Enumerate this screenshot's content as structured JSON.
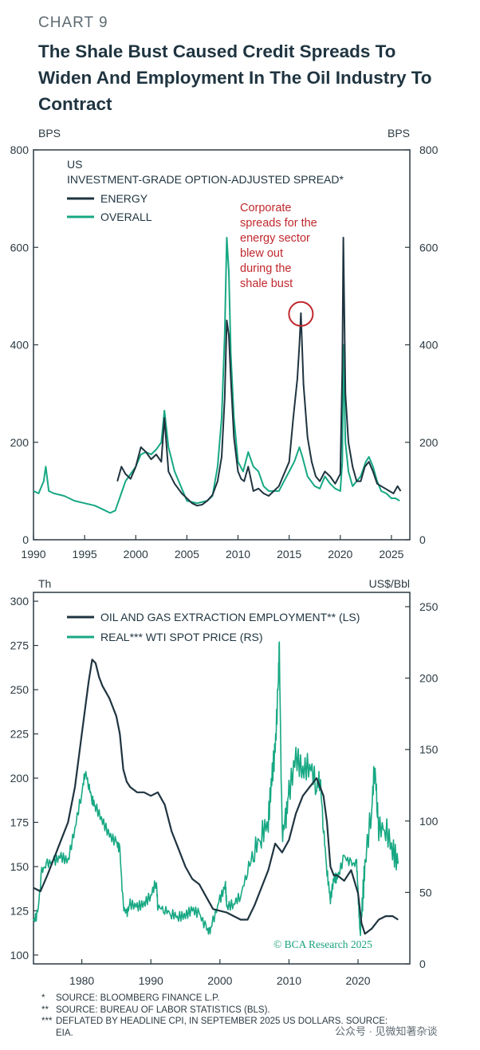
{
  "header": {
    "chart_label": "CHART 9",
    "title": "The Shale Bust Caused Credit Spreads To Widen And Employment In The Oil Industry To Contract"
  },
  "colors": {
    "dark_series": "#1f3440",
    "green_series": "#17a883",
    "annotation": "#c0282d",
    "axis": "#2b3a42"
  },
  "chart_data": [
    {
      "type": "line",
      "title": "US INVESTMENT-GRADE OPTION-ADJUSTED SPREAD*",
      "title_line1": "US",
      "title_line2": "INVESTMENT-GRADE OPTION-ADJUSTED SPREAD*",
      "ylabel_left": "BPS",
      "ylabel_right": "BPS",
      "xlim": [
        1990,
        2026.8
      ],
      "ylim": [
        0,
        800
      ],
      "x_ticks": [
        1990,
        1995,
        2000,
        2005,
        2010,
        2015,
        2020,
        2025
      ],
      "y_ticks": [
        0,
        200,
        400,
        600,
        800
      ],
      "series": [
        {
          "name": "ENERGY",
          "x": [
            1998.2,
            1998.6,
            1999.0,
            1999.5,
            2000.0,
            2000.5,
            2001.0,
            2001.5,
            2002.0,
            2002.5,
            2002.8,
            2003.2,
            2003.8,
            2004.5,
            2005.0,
            2005.5,
            2006.0,
            2006.5,
            2007.0,
            2007.5,
            2008.0,
            2008.4,
            2008.7,
            2008.9,
            2009.1,
            2009.3,
            2009.6,
            2010.0,
            2010.3,
            2010.6,
            2011.0,
            2011.5,
            2012.0,
            2012.5,
            2013.0,
            2013.5,
            2014.0,
            2014.5,
            2015.0,
            2015.4,
            2015.8,
            2016.0,
            2016.15,
            2016.4,
            2016.8,
            2017.2,
            2017.6,
            2018.0,
            2018.5,
            2019.0,
            2019.5,
            2020.0,
            2020.2,
            2020.3,
            2020.5,
            2020.8,
            2021.2,
            2021.6,
            2022.0,
            2022.4,
            2022.8,
            2023.2,
            2023.6,
            2024.0,
            2024.4,
            2024.8,
            2025.2,
            2025.6,
            2025.9
          ],
          "values": [
            120,
            150,
            135,
            125,
            150,
            190,
            180,
            165,
            175,
            160,
            250,
            140,
            115,
            95,
            85,
            75,
            70,
            72,
            80,
            92,
            120,
            170,
            290,
            450,
            420,
            330,
            210,
            140,
            125,
            120,
            150,
            100,
            105,
            95,
            90,
            100,
            110,
            135,
            160,
            250,
            330,
            400,
            465,
            320,
            210,
            160,
            130,
            120,
            140,
            130,
            115,
            135,
            350,
            620,
            300,
            200,
            150,
            120,
            120,
            150,
            160,
            140,
            115,
            110,
            105,
            100,
            95,
            110,
            100
          ]
        },
        {
          "name": "OVERALL",
          "x": [
            1990.0,
            1990.5,
            1991.0,
            1991.2,
            1991.5,
            1992.0,
            1993.0,
            1994.0,
            1995.0,
            1996.0,
            1997.0,
            1997.5,
            1998.0,
            1998.5,
            1999.0,
            1999.5,
            2000.0,
            2000.5,
            2001.0,
            2001.5,
            2002.0,
            2002.5,
            2002.8,
            2003.2,
            2003.8,
            2004.5,
            2005.0,
            2006.0,
            2007.0,
            2007.5,
            2008.0,
            2008.4,
            2008.7,
            2008.9,
            2009.1,
            2009.3,
            2009.6,
            2010.0,
            2010.5,
            2011.0,
            2011.5,
            2012.0,
            2012.5,
            2013.0,
            2014.0,
            2014.5,
            2015.0,
            2015.5,
            2016.0,
            2016.3,
            2016.8,
            2017.5,
            2018.0,
            2018.5,
            2019.0,
            2019.5,
            2020.0,
            2020.2,
            2020.3,
            2020.5,
            2020.8,
            2021.2,
            2022.0,
            2022.5,
            2022.8,
            2023.2,
            2023.6,
            2024.0,
            2024.5,
            2025.0,
            2025.4,
            2025.8
          ],
          "values": [
            100,
            95,
            120,
            150,
            100,
            95,
            90,
            80,
            75,
            70,
            60,
            55,
            60,
            90,
            120,
            135,
            150,
            175,
            180,
            175,
            185,
            200,
            265,
            190,
            140,
            105,
            80,
            75,
            80,
            90,
            150,
            250,
            420,
            620,
            550,
            380,
            250,
            160,
            140,
            180,
            150,
            140,
            110,
            100,
            100,
            120,
            140,
            160,
            190,
            170,
            130,
            110,
            105,
            130,
            115,
            105,
            100,
            160,
            400,
            200,
            140,
            110,
            130,
            160,
            170,
            150,
            120,
            100,
            95,
            85,
            85,
            80
          ]
        }
      ],
      "annotation": {
        "text_lines": [
          "Corporate",
          "spreads for the",
          "energy sector",
          "blew out",
          "during the",
          "shale bust"
        ],
        "target": [
          2016.15,
          465
        ]
      }
    },
    {
      "type": "line",
      "ylabel_left": "Th",
      "ylabel_right": "US$/Bbl",
      "xlim": [
        1973,
        2027.5
      ],
      "ylim_left": [
        95,
        305
      ],
      "ylim_right": [
        0,
        260
      ],
      "x_ticks": [
        1980,
        1990,
        2000,
        2010,
        2020
      ],
      "y_ticks_left": [
        100,
        125,
        150,
        175,
        200,
        225,
        250,
        275,
        300
      ],
      "y_ticks_right": [
        0,
        50,
        100,
        150,
        200,
        250
      ],
      "series": [
        {
          "name": "OIL AND GAS EXTRACTION EMPLOYMENT** (LS)",
          "axis": "left",
          "x": [
            1973,
            1974,
            1975,
            1976,
            1977,
            1978,
            1979,
            1980,
            1981,
            1981.5,
            1982,
            1982.5,
            1983,
            1984,
            1985,
            1985.5,
            1986,
            1986.5,
            1987,
            1988,
            1989,
            1990,
            1991,
            1992,
            1993,
            1994,
            1995,
            1996,
            1997,
            1998,
            1999,
            2000,
            2001,
            2002,
            2003,
            2004,
            2005,
            2006,
            2007,
            2008,
            2009,
            2010,
            2011,
            2012,
            2013,
            2014,
            2015,
            2015.5,
            2016,
            2016.5,
            2017,
            2018,
            2019,
            2020,
            2020.5,
            2021,
            2022,
            2023,
            2024,
            2025,
            2025.8
          ],
          "values": [
            138,
            136,
            145,
            155,
            165,
            175,
            195,
            225,
            255,
            267,
            265,
            257,
            252,
            245,
            235,
            225,
            205,
            198,
            195,
            192,
            192,
            190,
            192,
            185,
            170,
            160,
            150,
            143,
            140,
            133,
            126,
            125,
            124,
            122,
            120,
            120,
            128,
            138,
            148,
            163,
            158,
            165,
            180,
            190,
            195,
            200,
            190,
            175,
            150,
            145,
            145,
            142,
            148,
            135,
            118,
            112,
            115,
            120,
            122,
            122,
            120
          ]
        },
        {
          "name": "REAL*** WTI SPOT PRICE (RS)",
          "axis": "right",
          "x": [
            1973.0,
            1973.6,
            1974.2,
            1975,
            1976,
            1977,
            1978,
            1979,
            1980,
            1980.5,
            1981,
            1981.5,
            1982,
            1983,
            1984,
            1985,
            1985.5,
            1986,
            1986.5,
            1987,
            1988,
            1989,
            1990,
            1990.8,
            1991,
            1992,
            1993,
            1994,
            1995,
            1996,
            1997,
            1998,
            1998.5,
            1999,
            2000,
            2000.8,
            2001,
            2002,
            2003,
            2004,
            2005,
            2006,
            2007,
            2007.5,
            2008,
            2008.4,
            2008.6,
            2009,
            2009.5,
            2010,
            2011,
            2012,
            2013,
            2014,
            2014.5,
            2015,
            2015.5,
            2016,
            2016.5,
            2017,
            2018,
            2019,
            2019.8,
            2020,
            2020.3,
            2020.6,
            2021,
            2022,
            2022.4,
            2022.8,
            2023,
            2024,
            2025,
            2025.8
          ],
          "values": [
            30,
            35,
            65,
            70,
            72,
            75,
            72,
            95,
            120,
            135,
            125,
            115,
            110,
            100,
            90,
            85,
            80,
            40,
            35,
            42,
            40,
            42,
            48,
            58,
            40,
            38,
            35,
            33,
            34,
            38,
            35,
            25,
            22,
            30,
            45,
            55,
            40,
            42,
            48,
            65,
            80,
            90,
            100,
            130,
            150,
            190,
            220,
            90,
            100,
            120,
            145,
            135,
            140,
            125,
            130,
            95,
            65,
            45,
            60,
            60,
            75,
            70,
            70,
            50,
            20,
            40,
            70,
            110,
            140,
            110,
            95,
            95,
            80,
            70
          ]
        }
      ],
      "watermark": "© BCA Research 2025"
    }
  ],
  "footnotes": [
    {
      "mark": "*",
      "text": "SOURCE: BLOOMBERG FINANCE L.P."
    },
    {
      "mark": "**",
      "text": "SOURCE: BUREAU OF LABOR STATISTICS (BLS)."
    },
    {
      "mark": "***",
      "text": "DEFLATED BY HEADLINE CPI, IN SEPTEMBER 2025 US DOLLARS. SOURCE: EIA."
    }
  ],
  "footer_brand": "公众号 · 见微知著杂谈"
}
